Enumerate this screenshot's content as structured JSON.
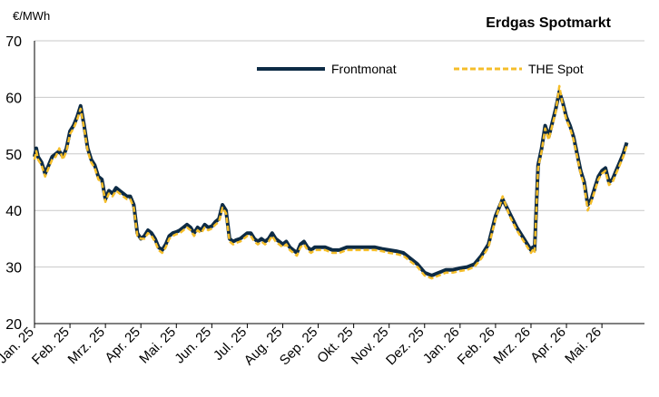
{
  "chart_data": {
    "type": "line",
    "title": "Erdgas Spotmarkt",
    "ylabel": "€/MWh",
    "xlabel": "",
    "ylim": [
      20,
      70
    ],
    "yticks": [
      20,
      30,
      40,
      50,
      60,
      70
    ],
    "xlim": [
      0,
      17.2
    ],
    "xtick_labels": [
      "Jan. 25",
      "Feb. 25",
      "Mrz. 25",
      "Apr. 25",
      "Mai. 25",
      "Jun. 25",
      "Jul. 25",
      "Aug. 25",
      "Sep. 25",
      "Okt. 25",
      "Nov. 25",
      "Dez. 25",
      "Jan. 26",
      "Feb. 26",
      "Mrz. 26",
      "Apr. 26",
      "Mai. 26"
    ],
    "grid": "horizontal",
    "legend_position": "top",
    "x_unit": "months since Jan. 25",
    "series": [
      {
        "name": "Frontmonat",
        "color": "#0d2b45",
        "style": "solid",
        "x": [
          0,
          0.05,
          0.1,
          0.2,
          0.3,
          0.4,
          0.5,
          0.6,
          0.7,
          0.8,
          0.9,
          1.0,
          1.1,
          1.2,
          1.3,
          1.4,
          1.5,
          1.6,
          1.7,
          1.8,
          1.9,
          2.0,
          2.1,
          2.2,
          2.3,
          2.4,
          2.5,
          2.6,
          2.7,
          2.8,
          2.9,
          3.0,
          3.1,
          3.2,
          3.3,
          3.4,
          3.5,
          3.6,
          3.7,
          3.8,
          3.9,
          4.0,
          4.1,
          4.2,
          4.3,
          4.4,
          4.5,
          4.6,
          4.7,
          4.8,
          4.9,
          5.0,
          5.1,
          5.2,
          5.3,
          5.4,
          5.5,
          5.6,
          5.7,
          5.8,
          5.9,
          6.0,
          6.1,
          6.2,
          6.3,
          6.4,
          6.5,
          6.6,
          6.7,
          6.8,
          6.9,
          7.0,
          7.1,
          7.2,
          7.3,
          7.4,
          7.5,
          7.6,
          7.7,
          7.8,
          7.9,
          8.0,
          8.2,
          8.4,
          8.6,
          8.8,
          9.0,
          9.2,
          9.4,
          9.6,
          9.8,
          10.0,
          10.2,
          10.4,
          10.6,
          10.8,
          11.0,
          11.2,
          11.4,
          11.6,
          11.8,
          12.0,
          12.2,
          12.4,
          12.6,
          12.8,
          13.0,
          13.2,
          13.4,
          13.6,
          13.8,
          14.0,
          14.05,
          14.1,
          14.2,
          14.3,
          14.4,
          14.5,
          14.6,
          14.7,
          14.8,
          14.9,
          15.0,
          15.1,
          15.2,
          15.3,
          15.4,
          15.5,
          15.6,
          15.7,
          15.8,
          15.9,
          16.0,
          16.1,
          16.2,
          16.3,
          16.4,
          16.5,
          16.6,
          16.7
        ],
        "values": [
          49.5,
          51,
          49.5,
          48.5,
          46.5,
          48,
          49.5,
          50,
          50.5,
          49.5,
          51,
          54,
          55,
          56.5,
          58.5,
          55,
          51,
          49,
          48,
          46,
          45.5,
          42,
          43.5,
          43,
          44,
          43.5,
          43,
          42.5,
          42.5,
          41,
          36,
          35,
          35.5,
          36.5,
          36,
          35,
          33.5,
          33,
          34,
          35.5,
          36,
          36.2,
          36.5,
          37,
          37.5,
          37,
          36,
          37,
          36.5,
          37.5,
          37,
          37.2,
          38,
          38.5,
          41,
          40,
          35,
          34.5,
          34.8,
          35,
          35.5,
          36,
          36,
          35,
          34.5,
          35,
          34.5,
          35,
          36,
          35,
          34.5,
          34,
          34.5,
          33.5,
          33,
          32.5,
          34,
          34.5,
          33.5,
          33,
          33.5,
          33.5,
          33.5,
          33,
          33,
          33.5,
          33.5,
          33.5,
          33.5,
          33.5,
          33.2,
          33,
          32.8,
          32.5,
          31.5,
          30.5,
          29,
          28.5,
          29,
          29.5,
          29.5,
          29.8,
          30,
          30.5,
          32,
          34,
          39,
          42,
          39.5,
          37,
          35,
          33,
          33.5,
          33,
          48,
          51,
          55,
          53,
          55.5,
          58,
          61,
          59,
          56.5,
          55,
          53,
          50,
          47,
          45,
          41,
          42,
          44,
          46,
          47,
          47.5,
          45,
          45.5,
          47,
          48.5,
          50,
          52
        ]
      },
      {
        "name": "THE Spot",
        "color": "#f5be2a",
        "style": "dashed",
        "x": [
          0,
          0.05,
          0.1,
          0.2,
          0.3,
          0.4,
          0.5,
          0.6,
          0.7,
          0.8,
          0.9,
          1.0,
          1.1,
          1.2,
          1.3,
          1.4,
          1.5,
          1.6,
          1.7,
          1.8,
          1.9,
          2.0,
          2.1,
          2.2,
          2.3,
          2.4,
          2.5,
          2.6,
          2.7,
          2.8,
          2.9,
          3.0,
          3.1,
          3.2,
          3.3,
          3.4,
          3.5,
          3.6,
          3.7,
          3.8,
          3.9,
          4.0,
          4.1,
          4.2,
          4.3,
          4.4,
          4.5,
          4.6,
          4.7,
          4.8,
          4.9,
          5.0,
          5.1,
          5.2,
          5.3,
          5.4,
          5.5,
          5.6,
          5.7,
          5.8,
          5.9,
          6.0,
          6.1,
          6.2,
          6.3,
          6.4,
          6.5,
          6.6,
          6.7,
          6.8,
          6.9,
          7.0,
          7.1,
          7.2,
          7.3,
          7.4,
          7.5,
          7.6,
          7.7,
          7.8,
          7.9,
          8.0,
          8.2,
          8.4,
          8.6,
          8.8,
          9.0,
          9.2,
          9.4,
          9.6,
          9.8,
          10.0,
          10.2,
          10.4,
          10.6,
          10.8,
          11.0,
          11.2,
          11.4,
          11.6,
          11.8,
          12.0,
          12.2,
          12.4,
          12.6,
          12.8,
          13.0,
          13.2,
          13.4,
          13.6,
          13.8,
          14.0,
          14.05,
          14.1,
          14.2,
          14.3,
          14.4,
          14.5,
          14.6,
          14.7,
          14.8,
          14.9,
          15.0,
          15.1,
          15.2,
          15.3,
          15.4,
          15.5,
          15.6,
          15.7,
          15.8,
          15.9,
          16.0,
          16.1,
          16.2,
          16.3,
          16.4,
          16.5,
          16.6,
          16.7
        ],
        "values": [
          49,
          50.5,
          49,
          48,
          46,
          47.5,
          49,
          49.5,
          51,
          49,
          50.5,
          53.5,
          54.5,
          56,
          58,
          54.5,
          50.5,
          48.5,
          47.5,
          45.5,
          45,
          41.5,
          43,
          42.5,
          43.5,
          43,
          42.5,
          42,
          42,
          40.5,
          35.5,
          35,
          35,
          36,
          35.5,
          34.5,
          33,
          32.5,
          33.5,
          35,
          35.5,
          35.8,
          36,
          36.5,
          37,
          36.5,
          35.5,
          36.5,
          36,
          37,
          36.5,
          36.8,
          37.5,
          38,
          40.5,
          39.5,
          34.5,
          34,
          34.3,
          34.5,
          35,
          35.5,
          35.5,
          34.5,
          34,
          34.5,
          34,
          34.5,
          35.5,
          34.5,
          34,
          33.5,
          34,
          33,
          32.5,
          32,
          33.5,
          34,
          33,
          32.5,
          33,
          33,
          33,
          32.5,
          32.5,
          33,
          33,
          33,
          33,
          33,
          32.8,
          32.5,
          32.3,
          32,
          31,
          30,
          28.5,
          28,
          28.5,
          29,
          29,
          29.3,
          29.5,
          30,
          31.5,
          33.5,
          38.5,
          42.5,
          39,
          36.5,
          34.5,
          32.5,
          33,
          32.5,
          47.5,
          50.5,
          54.5,
          52.5,
          55,
          57.5,
          62,
          58.5,
          56,
          54.5,
          52.5,
          49.5,
          46.5,
          44.5,
          40,
          41.5,
          43.5,
          45.5,
          46.5,
          47,
          44.5,
          45,
          46.5,
          48,
          49.5,
          51.5
        ]
      }
    ]
  }
}
